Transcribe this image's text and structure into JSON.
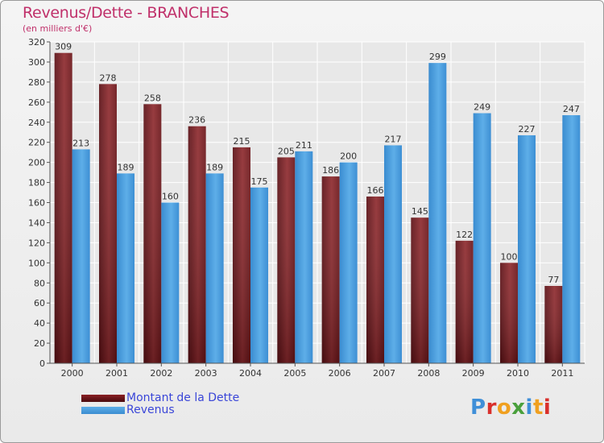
{
  "title": "Revenus/Dette - BRANCHES",
  "subtitle": "(en milliers d'€)",
  "legend": {
    "debt_label": "Montant de la Dette",
    "revenue_label": "Revenus"
  },
  "logo": {
    "letters": [
      "P",
      "r",
      "o",
      "x",
      "i",
      "t",
      "i"
    ],
    "colors": [
      "#3f8fd8",
      "#d9302c",
      "#f0a020",
      "#4aa03c",
      "#3f8fd8",
      "#f0a020",
      "#d9302c"
    ]
  },
  "colors": {
    "debt": "#8a1f24",
    "revenue": "#4ea0e0",
    "title": "#c0306a"
  },
  "chart_data": {
    "type": "bar",
    "title": "Revenus/Dette - BRANCHES",
    "subtitle": "(en milliers d'€)",
    "categories": [
      "2000",
      "2001",
      "2002",
      "2003",
      "2004",
      "2005",
      "2006",
      "2007",
      "2008",
      "2009",
      "2010",
      "2011"
    ],
    "series": [
      {
        "name": "Montant de la Dette",
        "values": [
          309,
          278,
          258,
          236,
          215,
          205,
          186,
          166,
          145,
          122,
          100,
          77
        ]
      },
      {
        "name": "Revenus",
        "values": [
          213,
          189,
          160,
          189,
          175,
          211,
          200,
          217,
          299,
          249,
          227,
          247
        ]
      }
    ],
    "ylim": [
      0,
      320
    ],
    "yticks": [
      0,
      20,
      40,
      60,
      80,
      100,
      120,
      140,
      160,
      180,
      200,
      220,
      240,
      260,
      280,
      300,
      320
    ],
    "grid": true,
    "legend_position": "bottom-left"
  }
}
